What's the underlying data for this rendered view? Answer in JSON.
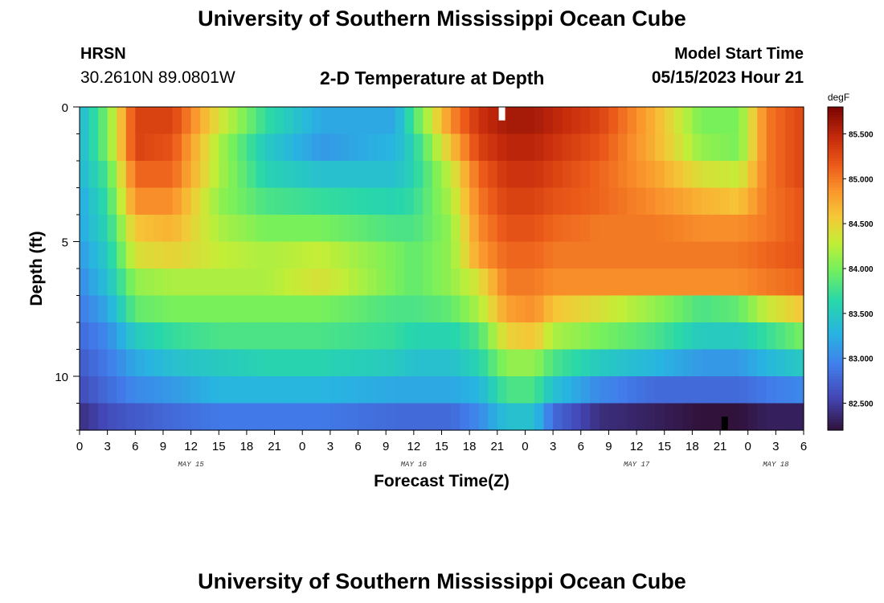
{
  "header": {
    "title": "University of Southern Mississippi Ocean Cube",
    "station": "HRSN",
    "coords": "30.2610N  89.0801W",
    "subtitle": "2-D Temperature at Depth",
    "model_label": "Model Start Time",
    "model_time": "05/15/2023 Hour 21"
  },
  "footer": {
    "title": "University of Southern Mississippi Ocean Cube"
  },
  "chart_data": {
    "type": "heatmap",
    "title": "2-D Temperature at Depth",
    "xlabel": "Forecast Time(Z)",
    "ylabel": "Depth (ft)",
    "x_range_hours": [
      0,
      78
    ],
    "x_tick_labels": [
      "0",
      "3",
      "6",
      "9",
      "12",
      "15",
      "18",
      "21",
      "0",
      "3",
      "6",
      "9",
      "12",
      "15",
      "18",
      "21",
      "0",
      "3",
      "6",
      "9",
      "12",
      "15",
      "18",
      "21",
      "0",
      "3",
      "6"
    ],
    "date_labels": [
      {
        "label": "MAY 15",
        "hour": 12
      },
      {
        "label": "MAY 16",
        "hour": 36
      },
      {
        "label": "MAY 17",
        "hour": 60
      },
      {
        "label": "MAY 18",
        "hour": 75
      }
    ],
    "y_range_ft": [
      0,
      12
    ],
    "y_tick_labels": [
      0,
      5,
      10
    ],
    "depth_levels_ft": [
      0.25,
      1.25,
      2.25,
      3.25,
      4.25,
      5.25,
      6.25,
      7.25,
      8.25,
      9.25,
      10.25,
      11.25
    ],
    "colorbar": {
      "unit": "degF",
      "min": 82.2,
      "max": 85.8,
      "tick_labels": [
        "85.500",
        "85.000",
        "84.500",
        "84.000",
        "83.500",
        "83.000",
        "82.500"
      ],
      "tick_values": [
        85.5,
        85.0,
        84.5,
        84.0,
        83.5,
        83.0,
        82.5
      ]
    },
    "time_profiles_degF": [
      {
        "hour": 0,
        "values": [
          83.3,
          83.3,
          83.3,
          83.2,
          83.2,
          83.1,
          83.0,
          82.9,
          82.8,
          82.7,
          82.6,
          82.4
        ]
      },
      {
        "hour": 3,
        "values": [
          84.0,
          84.0,
          83.8,
          83.7,
          83.6,
          83.5,
          83.4,
          83.2,
          83.0,
          82.9,
          82.8,
          82.6
        ]
      },
      {
        "hour": 6,
        "values": [
          85.3,
          85.3,
          85.1,
          84.9,
          84.6,
          84.4,
          84.1,
          83.9,
          83.5,
          83.2,
          83.0,
          82.7
        ]
      },
      {
        "hour": 10,
        "values": [
          85.3,
          85.2,
          85.1,
          84.9,
          84.7,
          84.5,
          84.2,
          84.0,
          83.7,
          83.4,
          83.1,
          82.8
        ]
      },
      {
        "hour": 15,
        "values": [
          84.4,
          84.2,
          84.2,
          84.1,
          84.2,
          84.3,
          84.2,
          84.0,
          83.8,
          83.5,
          83.3,
          82.9
        ]
      },
      {
        "hour": 20,
        "values": [
          83.7,
          83.5,
          83.6,
          83.8,
          84.0,
          84.2,
          84.2,
          84.0,
          83.8,
          83.6,
          83.3,
          82.9
        ]
      },
      {
        "hour": 26,
        "values": [
          83.2,
          83.1,
          83.4,
          83.7,
          84.0,
          84.3,
          84.4,
          84.0,
          83.8,
          83.6,
          83.3,
          82.9
        ]
      },
      {
        "hour": 34,
        "values": [
          83.2,
          83.3,
          83.4,
          83.6,
          83.8,
          84.0,
          84.0,
          83.8,
          83.7,
          83.5,
          83.2,
          82.8
        ]
      },
      {
        "hour": 36,
        "values": [
          83.8,
          83.6,
          83.6,
          83.7,
          83.8,
          83.9,
          83.9,
          83.8,
          83.6,
          83.4,
          83.2,
          82.8
        ]
      },
      {
        "hour": 40,
        "values": [
          84.9,
          84.6,
          84.3,
          84.2,
          84.1,
          84.1,
          84.1,
          83.9,
          83.6,
          83.4,
          83.2,
          82.8
        ]
      },
      {
        "hour": 43,
        "values": [
          85.4,
          85.3,
          85.1,
          85.0,
          84.9,
          84.8,
          84.4,
          84.2,
          83.8,
          83.6,
          83.3,
          83.0
        ]
      },
      {
        "hour": 46,
        "values": [
          85.6,
          85.5,
          85.4,
          85.3,
          85.2,
          85.1,
          85.0,
          84.8,
          84.5,
          84.1,
          83.8,
          83.4
        ]
      },
      {
        "hour": 49,
        "values": [
          85.6,
          85.5,
          85.4,
          85.3,
          85.2,
          85.1,
          85.0,
          84.9,
          84.6,
          84.1,
          83.8,
          83.4
        ]
      },
      {
        "hour": 51,
        "values": [
          85.5,
          85.4,
          85.3,
          85.2,
          85.1,
          85.0,
          84.9,
          84.6,
          84.2,
          83.8,
          83.4,
          82.8
        ]
      },
      {
        "hour": 56,
        "values": [
          85.3,
          85.2,
          85.1,
          85.1,
          85.0,
          85.0,
          84.9,
          84.4,
          84.0,
          83.5,
          83.0,
          82.4
        ]
      },
      {
        "hour": 62,
        "values": [
          84.7,
          84.7,
          84.8,
          84.9,
          85.0,
          85.0,
          84.9,
          84.1,
          83.8,
          83.3,
          82.8,
          82.3
        ]
      },
      {
        "hour": 67,
        "values": [
          84.0,
          84.1,
          84.4,
          84.7,
          84.9,
          85.0,
          84.9,
          83.8,
          83.5,
          83.1,
          82.8,
          82.2
        ]
      },
      {
        "hour": 71,
        "values": [
          84.0,
          84.0,
          84.3,
          84.6,
          84.9,
          85.0,
          84.9,
          83.9,
          83.5,
          83.1,
          82.8,
          82.2
        ]
      },
      {
        "hour": 74,
        "values": [
          85.0,
          85.0,
          85.0,
          85.0,
          85.0,
          85.1,
          85.0,
          84.3,
          83.7,
          83.3,
          82.9,
          82.3
        ]
      },
      {
        "hour": 78,
        "values": [
          85.3,
          85.3,
          85.3,
          85.2,
          85.2,
          85.2,
          85.1,
          84.6,
          84.0,
          83.5,
          83.0,
          82.3
        ]
      }
    ],
    "markers": [
      {
        "name": "surface-marker",
        "hour": 45.5,
        "depth_from_ft": 0.0,
        "depth_to_ft": 0.5,
        "color": "#ffffff"
      },
      {
        "name": "bottom-marker",
        "hour": 69.5,
        "depth_from_ft": 11.5,
        "depth_to_ft": 12.0,
        "color": "#000000"
      }
    ]
  }
}
